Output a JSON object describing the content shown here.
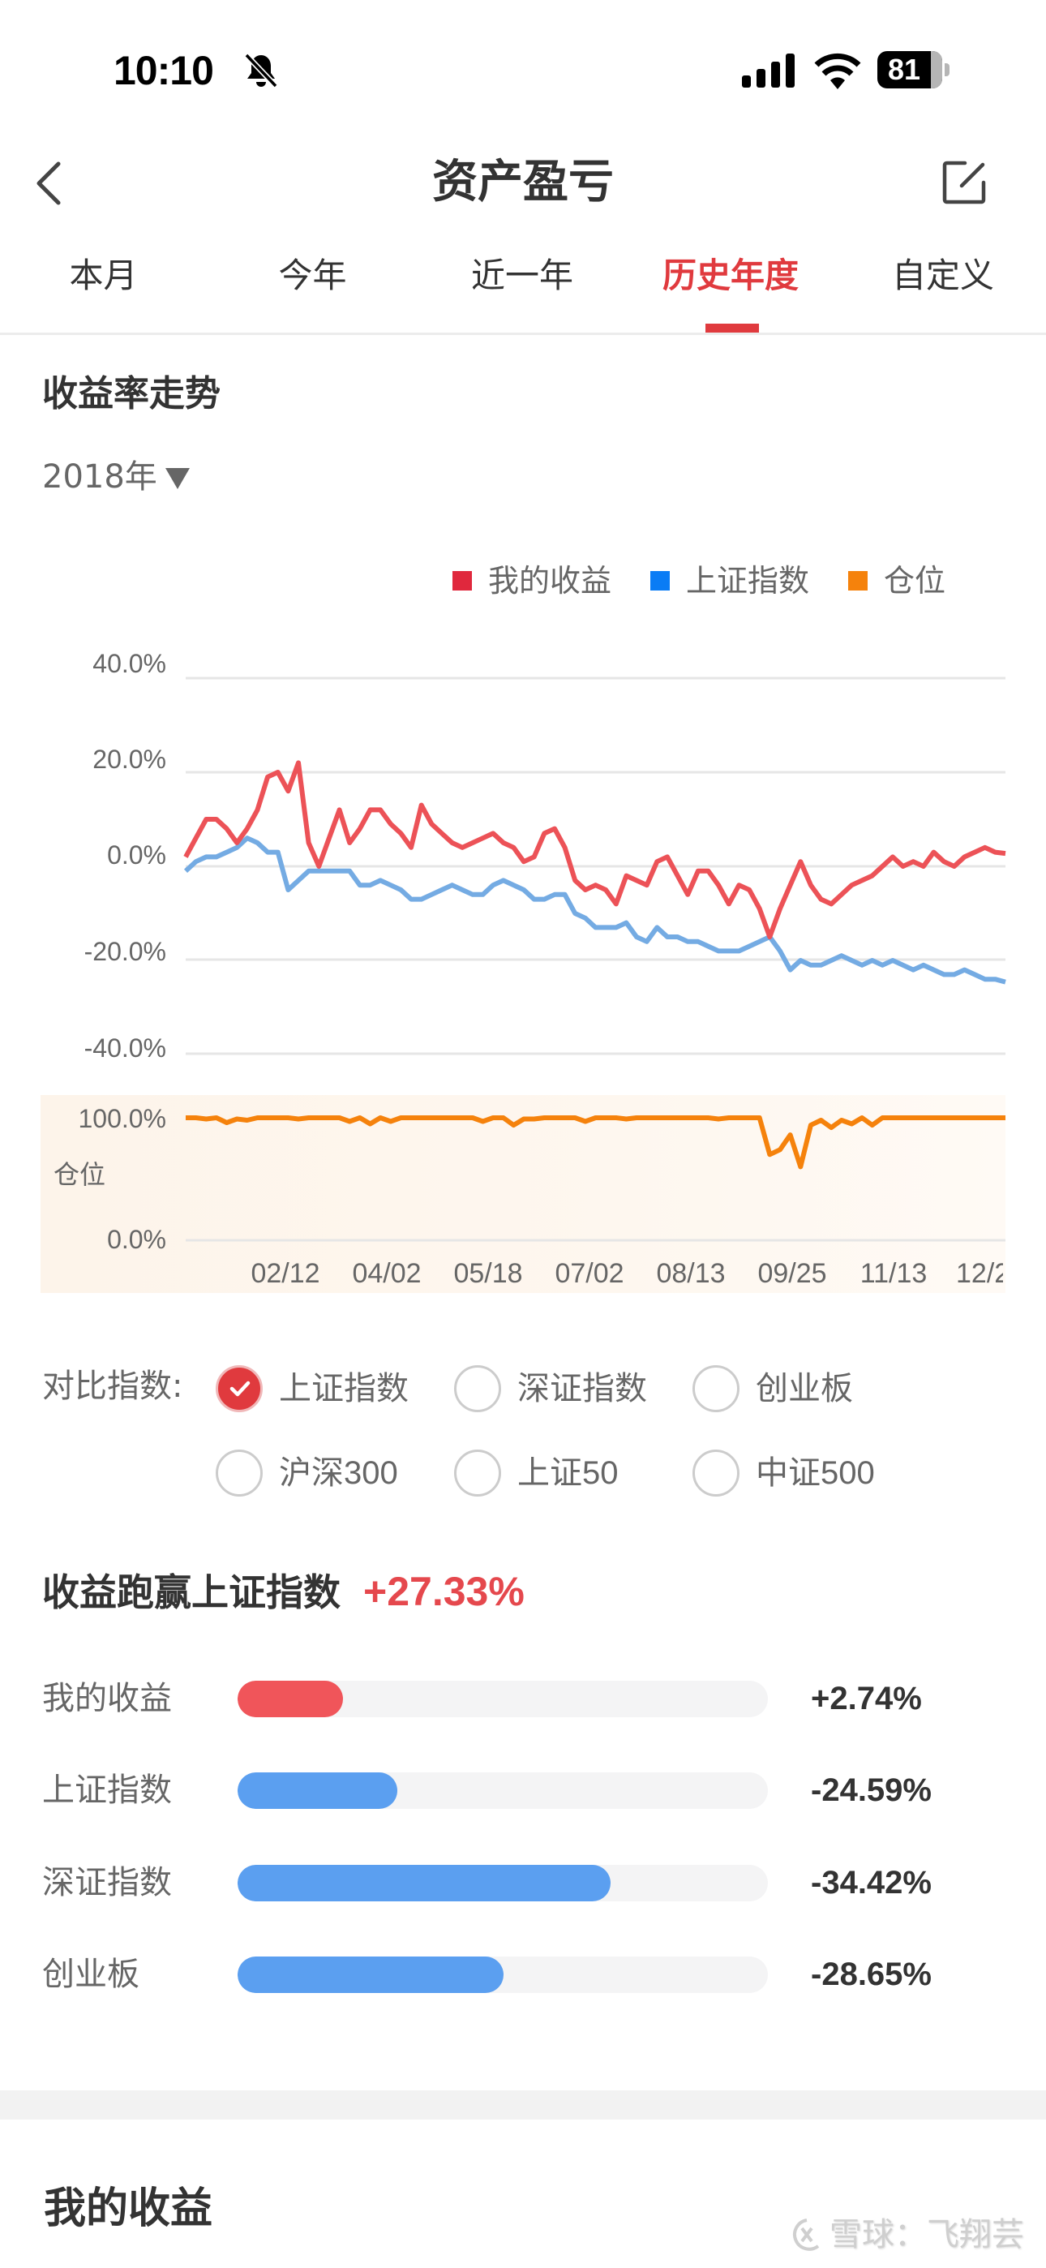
{
  "status_bar": {
    "time": "10:10",
    "silent_icon": "bell-slash-icon",
    "battery_percent": "81",
    "signal_icon": "cellular-signal-icon",
    "wifi_icon": "wifi-icon"
  },
  "header": {
    "title": "资产盈亏",
    "back_icon": "chevron-left-icon",
    "share_icon": "share-external-icon"
  },
  "tabs": [
    {
      "label": "本月",
      "active": false
    },
    {
      "label": "今年",
      "active": false
    },
    {
      "label": "近一年",
      "active": false
    },
    {
      "label": "历史年度",
      "active": true
    },
    {
      "label": "自定义",
      "active": false
    }
  ],
  "trend": {
    "title": "收益率走势",
    "year": "2018年",
    "legend": [
      {
        "label": "我的收益",
        "color": "#e0283d"
      },
      {
        "label": "上证指数",
        "color": "#0a7cf5"
      },
      {
        "label": "仓位",
        "color": "#f5820c"
      }
    ],
    "position_axis_label": "仓位"
  },
  "colors": {
    "accent": "#e03a3e",
    "my_return_line": "#ec5257",
    "index_line": "#74abe3",
    "position_line": "#f5820c",
    "bar_red": "#f0555a",
    "bar_blue": "#5b9ff0"
  },
  "chart_data": [
    {
      "type": "line",
      "title": "收益率走势",
      "subtitle": "2018年",
      "xlabel": "",
      "ylabel": "",
      "ylim": [
        -40,
        40
      ],
      "yticks": [
        "40.0%",
        "20.0%",
        "0.0%",
        "-20.0%",
        "-40.0%"
      ],
      "x_ticks": [
        "02/12",
        "04/02",
        "05/18",
        "07/02",
        "08/13",
        "09/25",
        "11/13",
        "12/2"
      ],
      "grid": true,
      "legend_position": "top-right",
      "x": [
        0,
        1,
        2,
        3,
        4,
        5,
        6,
        7,
        8,
        9,
        10,
        11,
        12,
        13,
        14,
        15,
        16,
        17,
        18,
        19,
        20,
        21,
        22,
        23,
        24,
        25,
        26,
        27,
        28,
        29,
        30,
        31,
        32,
        33,
        34,
        35,
        36,
        37,
        38,
        39,
        40,
        41,
        42,
        43,
        44,
        45,
        46,
        47,
        48,
        49,
        50,
        51,
        52,
        53,
        54,
        55,
        56,
        57,
        58,
        59,
        60,
        61,
        62,
        63,
        64,
        65,
        66,
        67,
        68,
        69,
        70,
        71,
        72,
        73,
        74,
        75,
        76,
        77,
        78,
        79,
        80
      ],
      "series": [
        {
          "name": "我的收益",
          "values": [
            2,
            6,
            10,
            10,
            8,
            5,
            8,
            12,
            19,
            20,
            16,
            22,
            5,
            0,
            6,
            12,
            5,
            8,
            12,
            12,
            9,
            7,
            4,
            13,
            9,
            7,
            5,
            4,
            5,
            6,
            7,
            5,
            4,
            1,
            2,
            7,
            8,
            4,
            -3,
            -5,
            -4,
            -5,
            -8,
            -2,
            -3,
            -4,
            1,
            2,
            -2,
            -6,
            -1,
            -1,
            -4,
            -8,
            -4,
            -5,
            -9,
            -15,
            -9,
            -4,
            1,
            -4,
            -7,
            -8,
            -6,
            -4,
            -3,
            -2,
            0,
            2,
            0,
            1,
            0,
            3,
            1,
            0,
            2,
            3,
            4,
            3,
            2.74
          ]
        },
        {
          "name": "上证指数",
          "values": [
            -1,
            1,
            2,
            2,
            3,
            4,
            6,
            5,
            3,
            3,
            -5,
            -3,
            -1,
            -1,
            -1,
            -1,
            -1,
            -4,
            -4,
            -3,
            -4,
            -5,
            -7,
            -7,
            -6,
            -5,
            -4,
            -5,
            -6,
            -6,
            -4,
            -3,
            -4,
            -5,
            -7,
            -7,
            -6,
            -6,
            -10,
            -11,
            -13,
            -13,
            -13,
            -12,
            -15,
            -16,
            -13,
            -15,
            -15,
            -16,
            -16,
            -17,
            -18,
            -18,
            -18,
            -17,
            -16,
            -15,
            -18,
            -22,
            -20,
            -21,
            -21,
            -20,
            -19,
            -20,
            -21,
            -20,
            -21,
            -20,
            -21,
            -22,
            -21,
            -22,
            -23,
            -23,
            -22,
            -23,
            -24,
            -24,
            -24.59
          ]
        }
      ]
    },
    {
      "type": "line",
      "title": "仓位",
      "ylim": [
        0,
        100
      ],
      "yticks": [
        "100.0%",
        "0.0%"
      ],
      "x_ticks": [
        "02/12",
        "04/02",
        "05/18",
        "07/02",
        "08/13",
        "09/25",
        "11/13",
        "12/2"
      ],
      "series": [
        {
          "name": "仓位",
          "values": [
            100,
            100,
            99,
            100,
            96,
            99,
            98,
            100,
            100,
            100,
            100,
            99,
            100,
            100,
            100,
            100,
            97,
            100,
            95,
            100,
            97,
            100,
            100,
            100,
            100,
            100,
            100,
            100,
            100,
            97,
            100,
            100,
            94,
            99,
            99,
            100,
            100,
            100,
            100,
            97,
            100,
            100,
            100,
            99,
            100,
            100,
            100,
            100,
            100,
            100,
            100,
            100,
            99,
            100,
            100,
            100,
            100,
            70,
            74,
            86,
            60,
            94,
            98,
            92,
            98,
            95,
            100,
            94,
            100,
            100,
            100,
            100,
            100,
            100,
            100,
            100,
            100,
            100,
            100,
            100,
            100
          ]
        }
      ]
    },
    {
      "type": "bar",
      "title": "收益跑赢上证指数",
      "headline_value": "+27.33%",
      "categories": [
        "我的收益",
        "上证指数",
        "深证指数",
        "创业板"
      ],
      "values": [
        2.74,
        -24.59,
        -34.42,
        -28.65
      ],
      "value_labels": [
        "+2.74%",
        "-24.59%",
        "-34.42%",
        "-28.65%"
      ],
      "bar_fill_ratio": [
        0.2,
        0.37,
        0.77,
        0.57
      ],
      "bar_colors": [
        "#f0555a",
        "#5b9ff0",
        "#5b9ff0",
        "#5b9ff0"
      ]
    }
  ],
  "compare": {
    "label": "对比指数:",
    "options": [
      {
        "label": "上证指数",
        "checked": true
      },
      {
        "label": "深证指数",
        "checked": false
      },
      {
        "label": "创业板",
        "checked": false
      },
      {
        "label": "沪深300",
        "checked": false
      },
      {
        "label": "上证50",
        "checked": false
      },
      {
        "label": "中证500",
        "checked": false
      }
    ]
  },
  "beat": {
    "title": "收益跑赢上证指数",
    "value": "+27.33%",
    "rows": [
      {
        "label": "我的收益",
        "value": "+2.74%"
      },
      {
        "label": "上证指数",
        "value": "-24.59%"
      },
      {
        "label": "深证指数",
        "value": "-34.42%"
      },
      {
        "label": "创业板",
        "value": "-28.65%"
      }
    ]
  },
  "my_earnings": {
    "title": "我的收益"
  },
  "watermark": {
    "text": "雪球：飞翔芸"
  }
}
